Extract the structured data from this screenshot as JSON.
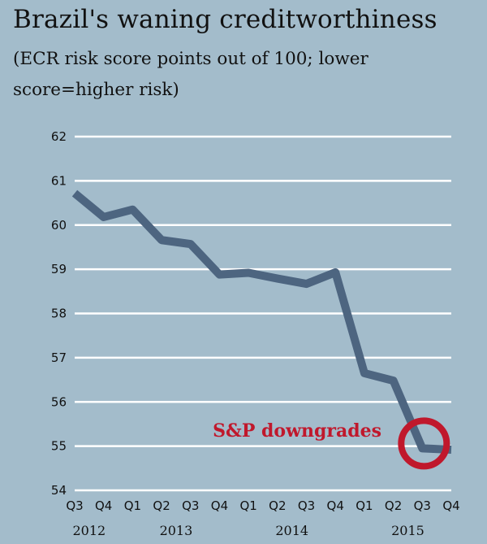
{
  "chart_data": {
    "type": "line",
    "title": "Brazil's waning creditworthiness",
    "subtitle": "(ECR risk score points out of 100; lower score=higher risk)",
    "xlabel": "",
    "ylabel": "",
    "categories": [
      "Q3",
      "Q4",
      "Q1",
      "Q2",
      "Q3",
      "Q4",
      "Q1",
      "Q2",
      "Q3",
      "Q4",
      "Q1",
      "Q2",
      "Q3",
      "Q4"
    ],
    "year_labels": [
      {
        "label": "2012",
        "from": 0,
        "to": 1
      },
      {
        "label": "2013",
        "from": 2,
        "to": 5
      },
      {
        "label": "2014",
        "from": 6,
        "to": 9
      },
      {
        "label": "2015",
        "from": 10,
        "to": 13
      }
    ],
    "series": [
      {
        "name": "ECR risk score",
        "color": "#4d6580",
        "values": [
          60.72,
          60.18,
          60.35,
          59.66,
          59.57,
          58.88,
          58.92,
          58.79,
          58.67,
          58.93,
          56.65,
          56.48,
          54.95,
          54.92
        ]
      }
    ],
    "ylim": [
      54,
      62
    ],
    "yticks": [
      54,
      55,
      56,
      57,
      58,
      59,
      60,
      61,
      62
    ],
    "grid": true,
    "annotation": {
      "text": "S&P downgrades",
      "index": 12,
      "color": "#c0182c"
    }
  }
}
